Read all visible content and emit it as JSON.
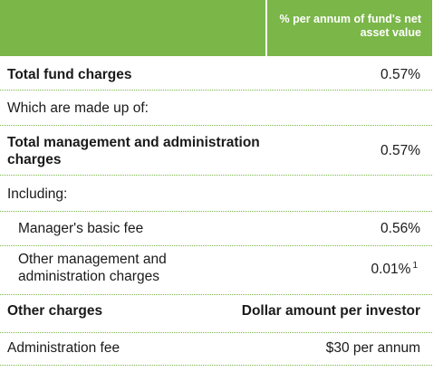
{
  "header": {
    "left": "",
    "right": "% per annum of fund's net asset value"
  },
  "rows": [
    {
      "label": "Total fund charges",
      "value": "0.57%"
    },
    {
      "label": "Which are made up of:",
      "value": ""
    },
    {
      "label": "Total management and administration charges",
      "value": "0.57%"
    },
    {
      "label": "Including:",
      "value": ""
    },
    {
      "label": "Manager's basic fee",
      "value": "0.56%"
    },
    {
      "label": "Other management and administration charges",
      "value": "0.01%",
      "footnote": "1"
    },
    {
      "label": "Other charges",
      "value": "Dollar amount per investor"
    },
    {
      "label": "Administration fee",
      "value": "$30 per annum"
    }
  ],
  "colors": {
    "accent": "#7ab648",
    "text": "#1a1a1a",
    "header_text": "#ffffff"
  }
}
